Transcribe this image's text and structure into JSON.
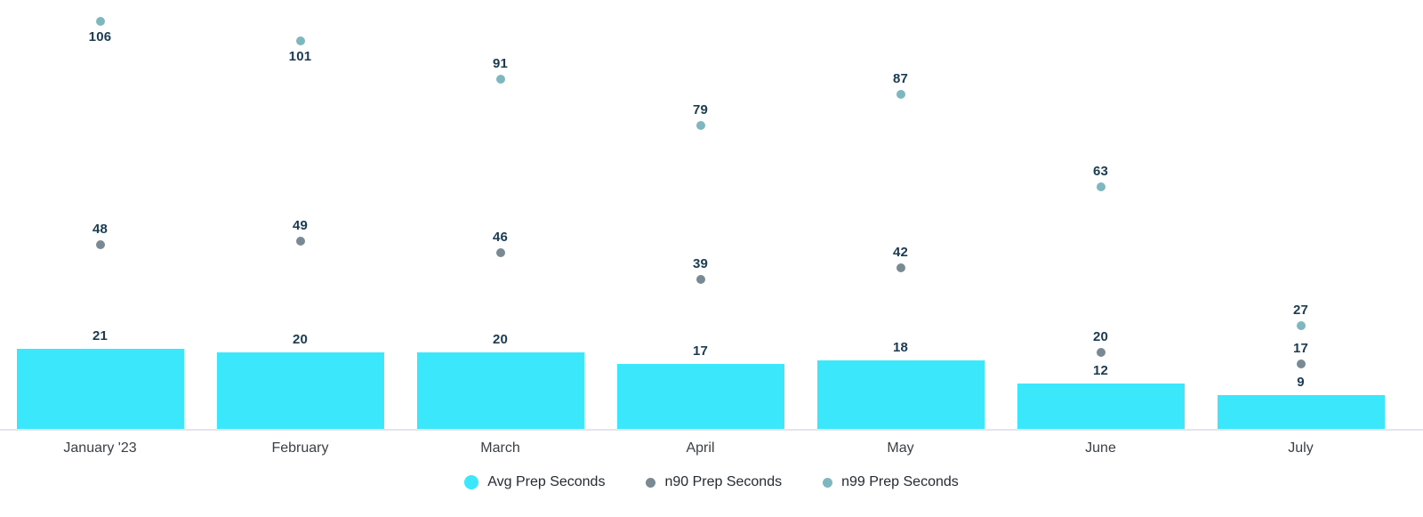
{
  "chart_data": {
    "type": "bar",
    "title": "",
    "xlabel": "",
    "ylabel": "",
    "categories": [
      "January '23",
      "February",
      "March",
      "April",
      "May",
      "June",
      "July"
    ],
    "series": [
      {
        "name": "Avg Prep Seconds",
        "mark": "bar",
        "color": "#3BE7FA",
        "values": [
          21,
          20,
          20,
          17,
          18,
          12,
          9
        ]
      },
      {
        "name": "n90 Prep Seconds",
        "mark": "point",
        "color": "#7A8A94",
        "values": [
          48,
          49,
          46,
          39,
          42,
          20,
          17
        ]
      },
      {
        "name": "n99 Prep Seconds",
        "mark": "point",
        "color": "#7EB7BF",
        "values": [
          106,
          101,
          91,
          79,
          87,
          63,
          27
        ]
      }
    ],
    "ylim": [
      0,
      112
    ],
    "grid": false,
    "data_labels": true,
    "legend_position": "bottom",
    "colors": {
      "value_label": "#1A3B52",
      "category_label": "#3A4046",
      "axis_line": "#E2E5EB",
      "legend_text": "#232B33",
      "background": "#FFFFFF"
    }
  }
}
